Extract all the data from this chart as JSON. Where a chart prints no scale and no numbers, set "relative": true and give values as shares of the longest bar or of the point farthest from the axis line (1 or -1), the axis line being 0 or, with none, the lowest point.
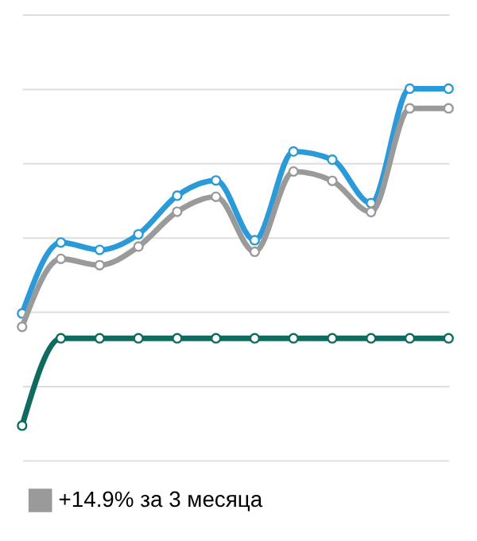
{
  "chart_data": {
    "type": "line",
    "relative": true,
    "categories": [
      null,
      null,
      null,
      null,
      null,
      null,
      null,
      null,
      null,
      null,
      null,
      null
    ],
    "series": [
      {
        "color": "#2a9ad8",
        "values": [
          0.395,
          0.586,
          0.566,
          0.608,
          0.712,
          0.753,
          0.592,
          0.831,
          0.809,
          0.692,
          1.0,
          1.0
        ]
      },
      {
        "name": "+14.9% за 3 месяца",
        "color": "#9a9a9a",
        "values": [
          0.359,
          0.542,
          0.525,
          0.575,
          0.669,
          0.709,
          0.561,
          0.777,
          0.752,
          0.668,
          0.947,
          0.947
        ]
      },
      {
        "color": "#0e6b5e",
        "values": [
          0.093,
          0.328,
          0.328,
          0.328,
          0.328,
          0.328,
          0.328,
          0.328,
          0.328,
          0.328,
          0.328,
          0.328
        ]
      }
    ],
    "marker": "circle",
    "line_style": "solid",
    "grid": "y",
    "legend": "bottom",
    "tick_labels": false
  }
}
